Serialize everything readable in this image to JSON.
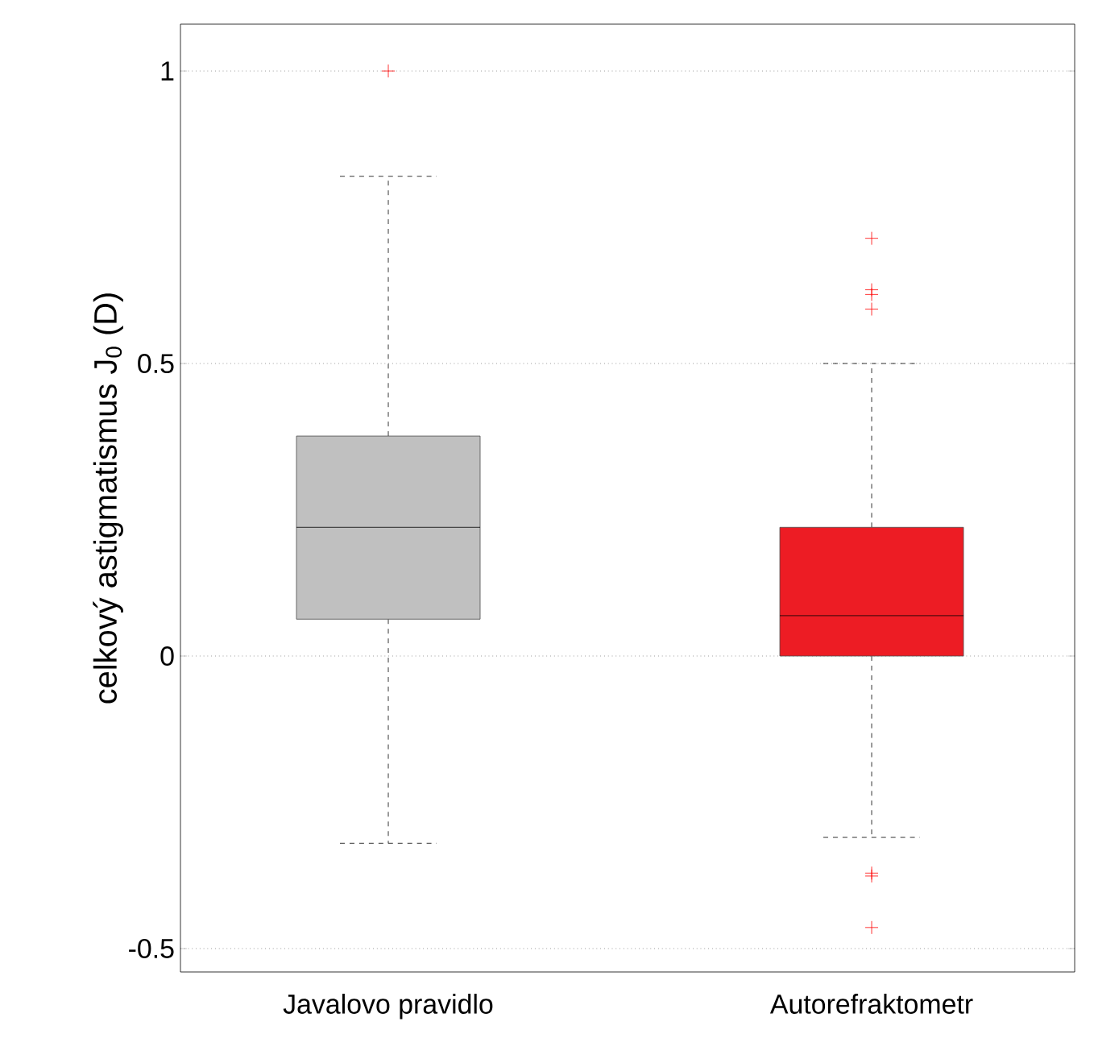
{
  "chart_data": {
    "type": "box",
    "ylabel": "celkový astigmatismus J$_{0}$ (D)",
    "categories": [
      "Javalovo pravidlo",
      "Autorefraktometr"
    ],
    "colors": [
      "#c0c0c0",
      "#ed1c24"
    ],
    "boxes": [
      {
        "low": -0.32,
        "q1": 0.063,
        "median": 0.22,
        "q3": 0.376,
        "high": 0.82,
        "outliers": [
          1.0
        ]
      },
      {
        "low": -0.31,
        "q1": 0.0,
        "median": 0.069,
        "q3": 0.22,
        "high": 0.5,
        "outliers": [
          0.714,
          0.626,
          0.618,
          0.593,
          -0.371,
          -0.376,
          -0.464
        ]
      }
    ],
    "ylim": [
      -0.54,
      1.08
    ],
    "yticks": [
      -0.5,
      0,
      0.5,
      1
    ],
    "grid": "y",
    "marker": "cross"
  }
}
